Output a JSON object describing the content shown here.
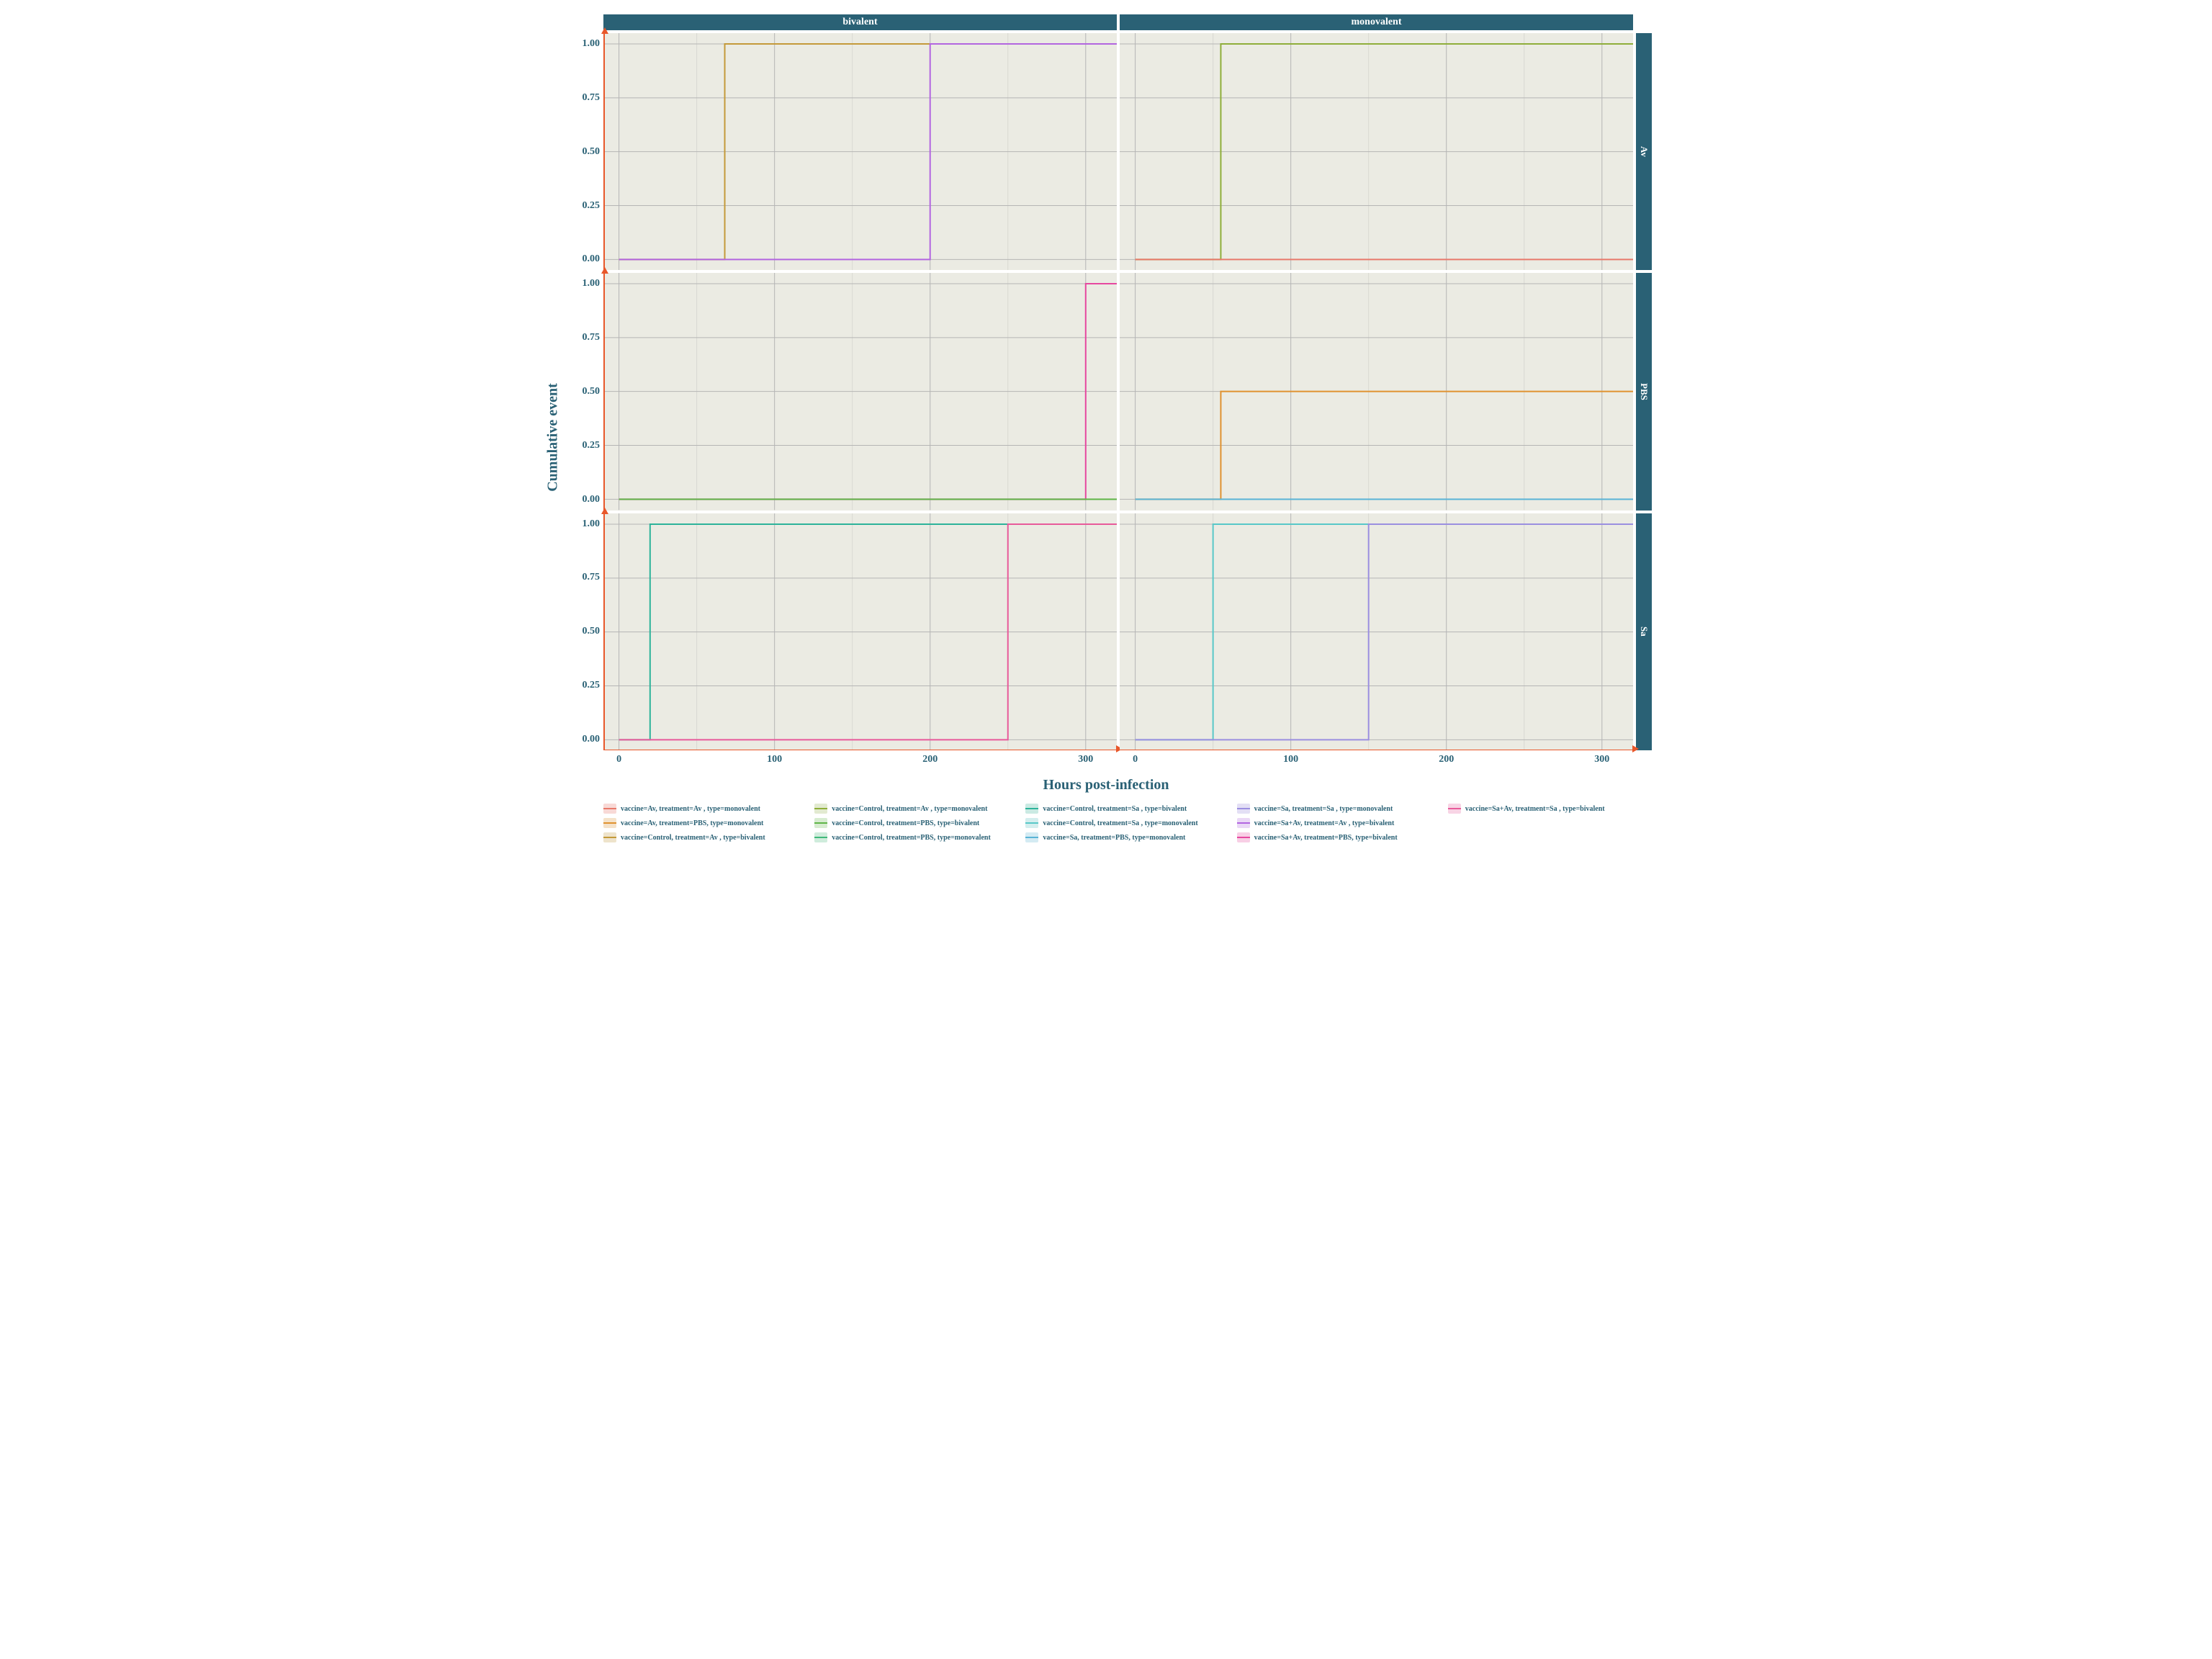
{
  "axes": {
    "x_label": "Hours post-infection",
    "y_label": "Cumulative event",
    "label_color": "#2a6175",
    "label_fontsize": 20,
    "tick_color": "#2a6175",
    "tick_fontsize": 14,
    "x_ticks": [
      0,
      100,
      200,
      300
    ],
    "x_tick_labels": [
      "0",
      "100",
      "200",
      "300"
    ],
    "x_range": [
      -10,
      320
    ],
    "y_ticks": [
      0.0,
      0.25,
      0.5,
      0.75,
      1.0
    ],
    "y_tick_labels": [
      "0.00",
      "0.25",
      "0.50",
      "0.75",
      "1.00"
    ],
    "y_range": [
      -0.05,
      1.05
    ],
    "axis_line_color": "#e8572a",
    "arrow_color": "#e8572a"
  },
  "facets": {
    "col_labels": [
      "bivalent",
      "monovalent"
    ],
    "row_labels": [
      "Av",
      "PBS",
      "Sa"
    ],
    "strip_bg": "#2a6175",
    "strip_fg": "#ffffff",
    "panel_bg": "#ebebe3",
    "grid_major_color": "#b5b5b5",
    "grid_minor_color": "#d8d8d2",
    "x_minor_step": 50
  },
  "line_width": 2,
  "panels": [
    {
      "row": "Av",
      "col": "bivalent",
      "series": [
        {
          "color": "#c49a3a",
          "step": [
            [
              0,
              0
            ],
            [
              68,
              0
            ],
            [
              68,
              1
            ],
            [
              320,
              1
            ]
          ]
        },
        {
          "color": "#b266e0",
          "step": [
            [
              0,
              0
            ],
            [
              200,
              0
            ],
            [
              200,
              1
            ],
            [
              320,
              1
            ]
          ]
        }
      ]
    },
    {
      "row": "Av",
      "col": "monovalent",
      "series": [
        {
          "color": "#8fae3a",
          "step": [
            [
              0,
              0
            ],
            [
              55,
              0
            ],
            [
              55,
              1
            ],
            [
              320,
              1
            ]
          ]
        },
        {
          "color": "#e8796b",
          "step": [
            [
              0,
              0
            ],
            [
              320,
              0
            ]
          ]
        }
      ]
    },
    {
      "row": "PBS",
      "col": "bivalent",
      "series": [
        {
          "color": "#e648a0",
          "step": [
            [
              0,
              0
            ],
            [
              300,
              0
            ],
            [
              300,
              1
            ],
            [
              320,
              1
            ]
          ]
        },
        {
          "color": "#5fb548",
          "step": [
            [
              0,
              0
            ],
            [
              320,
              0
            ]
          ]
        }
      ]
    },
    {
      "row": "PBS",
      "col": "monovalent",
      "series": [
        {
          "color": "#e09230",
          "step": [
            [
              0,
              0
            ],
            [
              55,
              0
            ],
            [
              55,
              0.5
            ],
            [
              320,
              0.5
            ]
          ]
        },
        {
          "color": "#5ab4d6",
          "step": [
            [
              0,
              0
            ],
            [
              320,
              0
            ]
          ]
        }
      ]
    },
    {
      "row": "Sa",
      "col": "bivalent",
      "series": [
        {
          "color": "#2db39a",
          "step": [
            [
              0,
              0
            ],
            [
              20,
              0
            ],
            [
              20,
              1
            ],
            [
              320,
              1
            ]
          ]
        },
        {
          "color": "#e85a9a",
          "step": [
            [
              0,
              0
            ],
            [
              250,
              0
            ],
            [
              250,
              1
            ],
            [
              320,
              1
            ]
          ]
        }
      ]
    },
    {
      "row": "Sa",
      "col": "monovalent",
      "series": [
        {
          "color": "#58c8c8",
          "step": [
            [
              0,
              0
            ],
            [
              50,
              0
            ],
            [
              50,
              1
            ],
            [
              320,
              1
            ]
          ]
        },
        {
          "color": "#9b8fe0",
          "step": [
            [
              0,
              0
            ],
            [
              150,
              0
            ],
            [
              150,
              1
            ],
            [
              320,
              1
            ]
          ]
        }
      ]
    }
  ],
  "legend": {
    "fontsize": 10,
    "text_color": "#2a6175",
    "items": [
      {
        "color": "#e8796b",
        "fill": "#f8d9d6",
        "label": "vaccine=Av, treatment=Av , type=monovalent"
      },
      {
        "color": "#8fae3a",
        "fill": "#e2ead0",
        "label": "vaccine=Control, treatment=Av , type=monovalent"
      },
      {
        "color": "#2db39a",
        "fill": "#caeae3",
        "label": "vaccine=Control, treatment=Sa , type=bivalent"
      },
      {
        "color": "#9b8fe0",
        "fill": "#e3dff5",
        "label": "vaccine=Sa, treatment=Sa , type=monovalent"
      },
      {
        "color": "#e85a9a",
        "fill": "#f8d4e5",
        "label": "vaccine=Sa+Av, treatment=Sa , type=bivalent"
      },
      {
        "color": "#e09230",
        "fill": "#f5e2c9",
        "label": "vaccine=Av, treatment=PBS, type=monovalent"
      },
      {
        "color": "#5fb548",
        "fill": "#d7ecd0",
        "label": "vaccine=Control, treatment=PBS, type=bivalent"
      },
      {
        "color": "#58c8c8",
        "fill": "#d3eeee",
        "label": "vaccine=Control, treatment=Sa , type=monovalent"
      },
      {
        "color": "#b266e0",
        "fill": "#ead8f6",
        "label": "vaccine=Sa+Av, treatment=Av , type=bivalent"
      },
      null,
      {
        "color": "#c49a3a",
        "fill": "#eee3cb",
        "label": "vaccine=Control, treatment=Av , type=bivalent"
      },
      {
        "color": "#40b87a",
        "fill": "#cfecdc",
        "label": "vaccine=Control, treatment=PBS, type=monovalent"
      },
      {
        "color": "#5ab4d6",
        "fill": "#d4ebf3",
        "label": "vaccine=Sa, treatment=PBS, type=monovalent"
      },
      {
        "color": "#e648a0",
        "fill": "#f8cfe5",
        "label": "vaccine=Sa+Av, treatment=PBS, type=bivalent"
      },
      null
    ]
  }
}
